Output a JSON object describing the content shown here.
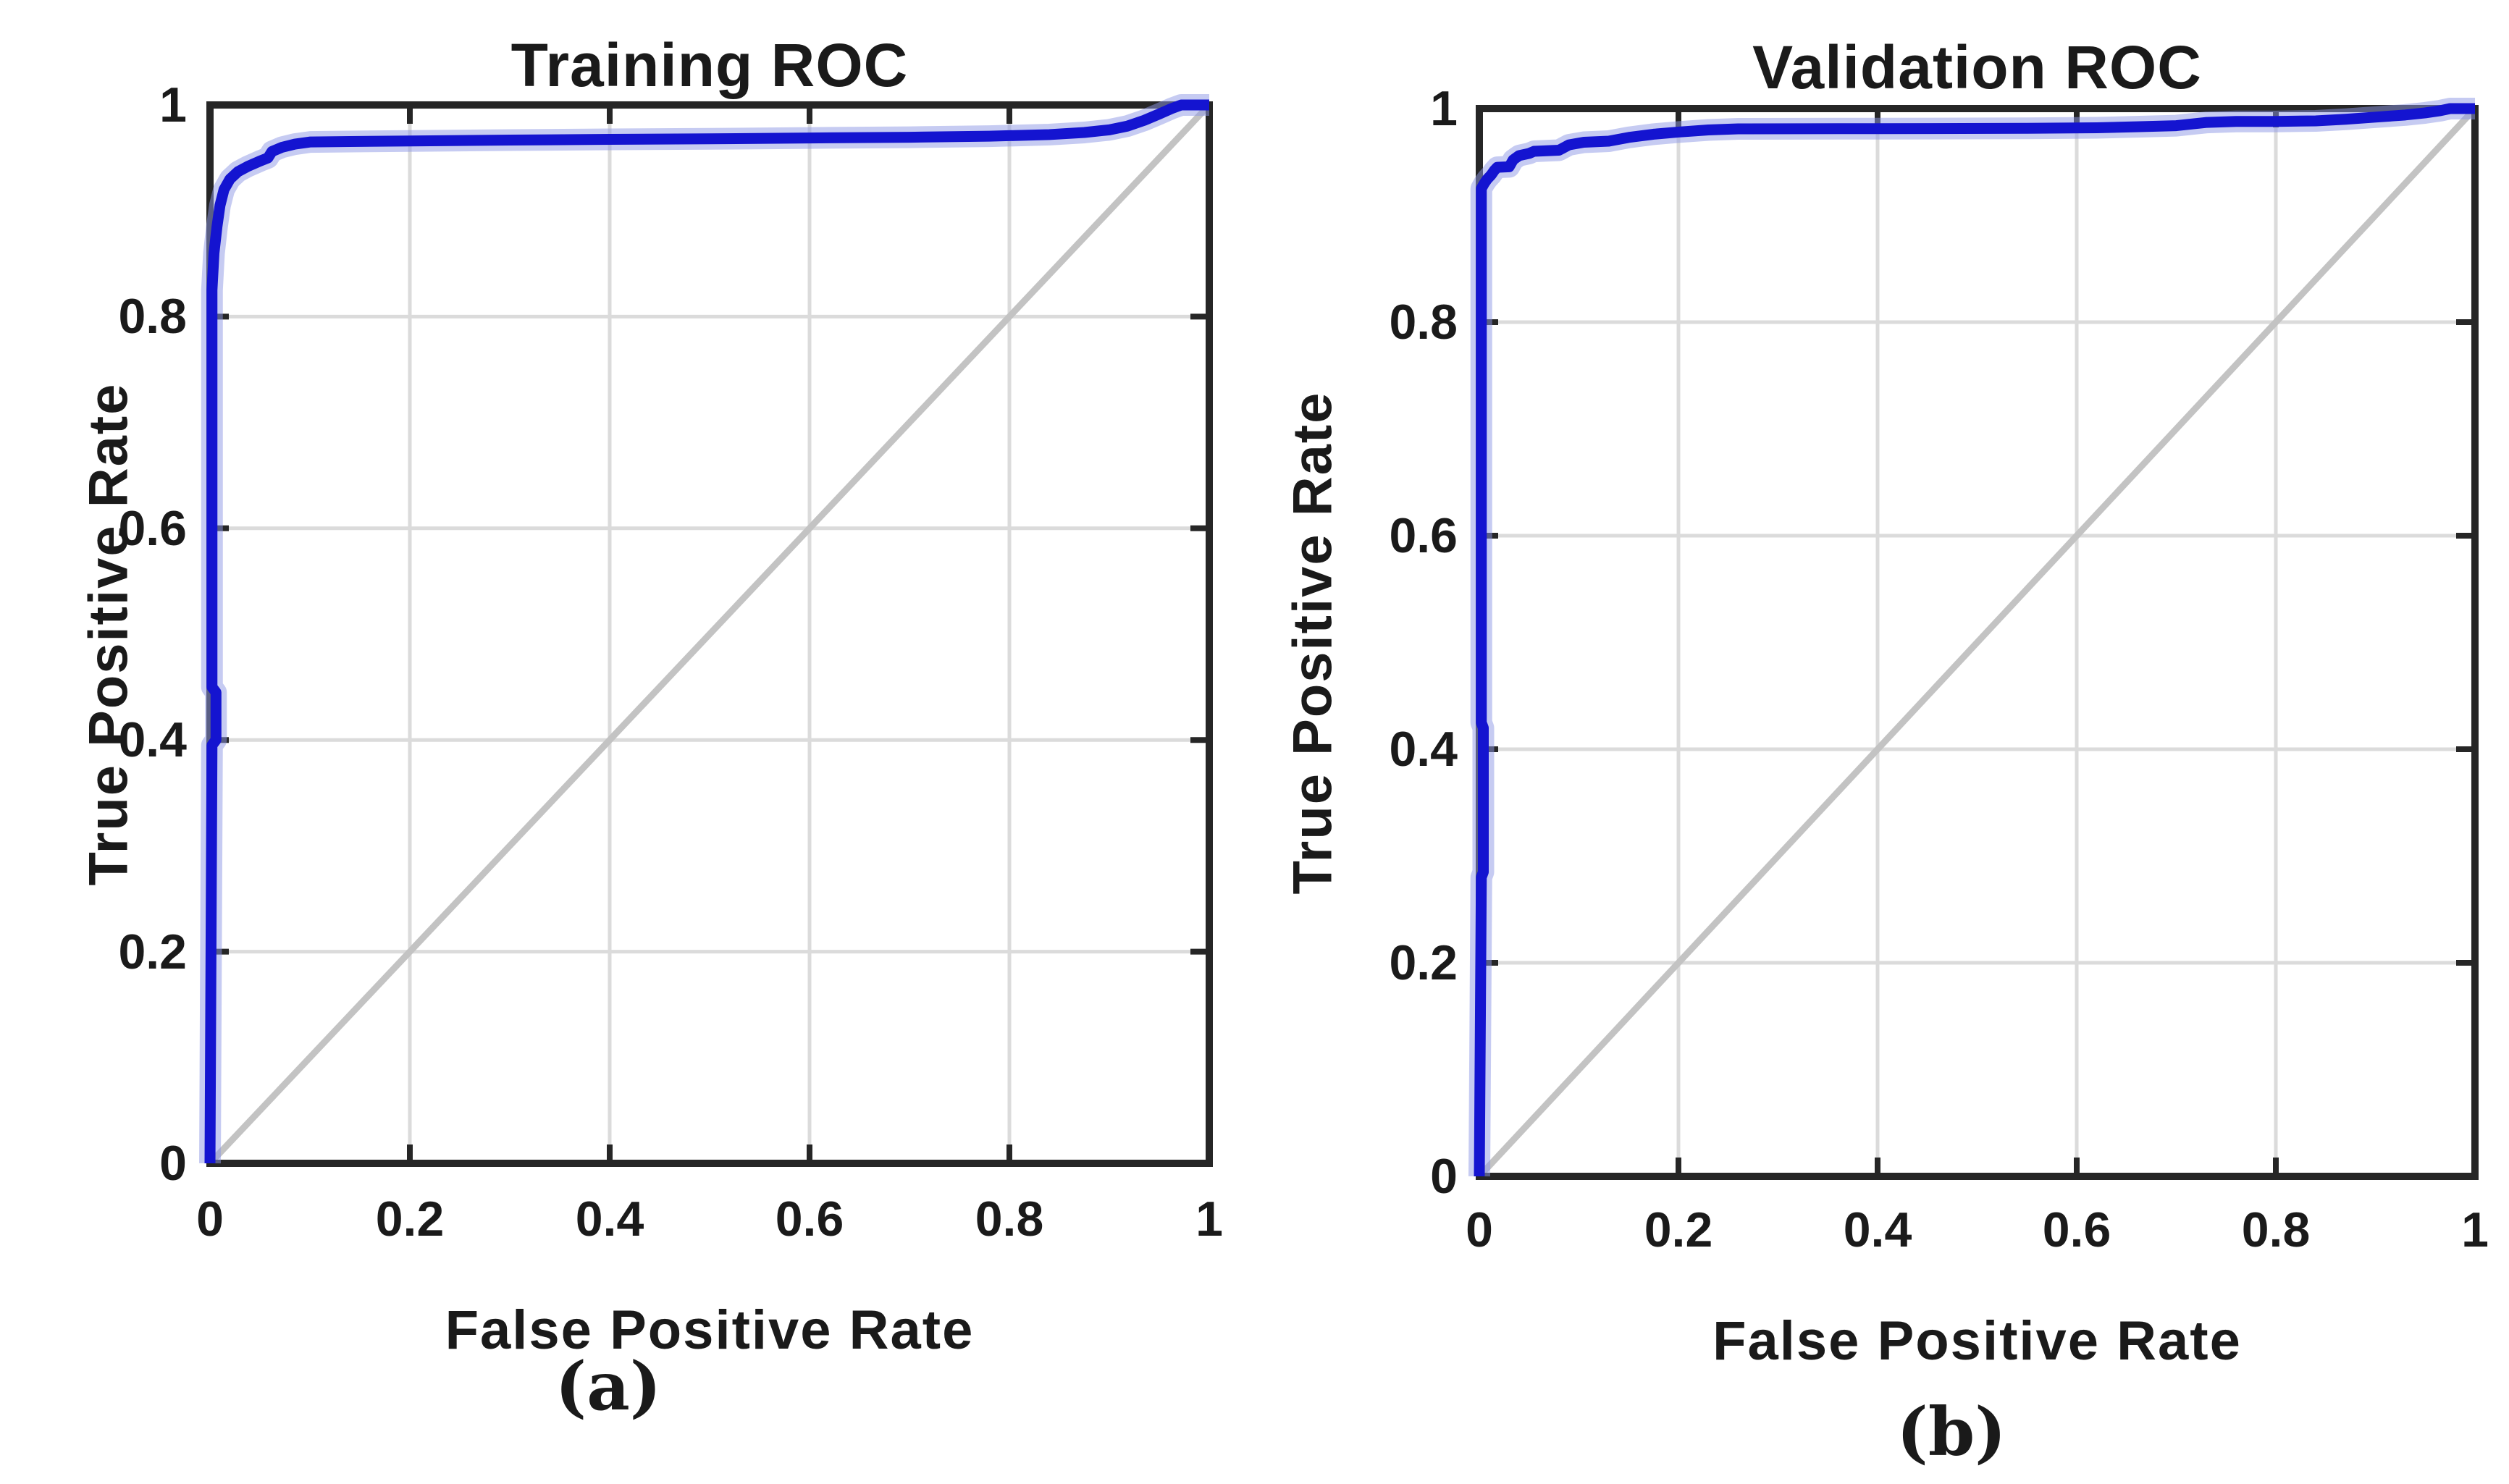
{
  "figure": {
    "background": "#ffffff"
  },
  "colors": {
    "roc": "#1414d0",
    "roc_halo": "#8d97e6",
    "reference": "#c3c3c3",
    "grid": "#dbdbdb",
    "axis": "#262626",
    "text": "#1a1a1a"
  },
  "chart_data": [
    {
      "type": "line",
      "title": "Training ROC",
      "xlabel": "False Positive Rate",
      "ylabel": "True Positive Rate",
      "caption": "(a)",
      "xlim": [
        0,
        1
      ],
      "ylim": [
        0,
        1
      ],
      "grid": true,
      "x_ticks": [
        "0",
        "0.2",
        "0.4",
        "0.6",
        "0.8",
        "1"
      ],
      "y_ticks": [
        "0",
        "0.2",
        "0.4",
        "0.6",
        "0.8",
        "1"
      ],
      "x_tick_values": [
        0,
        0.2,
        0.4,
        0.6,
        0.8,
        1
      ],
      "y_tick_values": [
        0,
        0.2,
        0.4,
        0.6,
        0.8,
        1
      ],
      "roc": {
        "name": "ROC curve",
        "color": "#1414d0",
        "width": 15,
        "halo_color": "#8d97e6",
        "halo_width": 30,
        "points": [
          [
            0.0,
            0.0
          ],
          [
            0.002,
            0.395
          ],
          [
            0.006,
            0.4
          ],
          [
            0.006,
            0.445
          ],
          [
            0.002,
            0.45
          ],
          [
            0.002,
            0.825
          ],
          [
            0.004,
            0.86
          ],
          [
            0.007,
            0.885
          ],
          [
            0.01,
            0.905
          ],
          [
            0.014,
            0.92
          ],
          [
            0.02,
            0.93
          ],
          [
            0.028,
            0.937
          ],
          [
            0.038,
            0.942
          ],
          [
            0.05,
            0.947
          ],
          [
            0.058,
            0.95
          ],
          [
            0.062,
            0.956
          ],
          [
            0.072,
            0.96
          ],
          [
            0.085,
            0.963
          ],
          [
            0.1,
            0.965
          ],
          [
            0.14,
            0.9655
          ],
          [
            0.2,
            0.966
          ],
          [
            0.3,
            0.9668
          ],
          [
            0.4,
            0.9675
          ],
          [
            0.5,
            0.968
          ],
          [
            0.6,
            0.9688
          ],
          [
            0.7,
            0.9695
          ],
          [
            0.78,
            0.9705
          ],
          [
            0.84,
            0.972
          ],
          [
            0.875,
            0.974
          ],
          [
            0.9,
            0.9765
          ],
          [
            0.918,
            0.98
          ],
          [
            0.935,
            0.9855
          ],
          [
            0.95,
            0.9915
          ],
          [
            0.962,
            0.9965
          ],
          [
            0.972,
            1.0
          ],
          [
            1.0,
            1.0
          ]
        ]
      },
      "reference": {
        "name": "chance line",
        "color": "#c3c3c3",
        "width": 9,
        "points": [
          [
            0,
            0
          ],
          [
            1,
            1
          ]
        ]
      }
    },
    {
      "type": "line",
      "title": "Validation ROC",
      "xlabel": "False Positive Rate",
      "ylabel": "True Positive Rate",
      "caption": "(b)",
      "xlim": [
        0,
        1
      ],
      "ylim": [
        0,
        1
      ],
      "grid": true,
      "x_ticks": [
        "0",
        "0.2",
        "0.4",
        "0.6",
        "0.8",
        "1"
      ],
      "y_ticks": [
        "0",
        "0.2",
        "0.4",
        "0.6",
        "0.8",
        "1"
      ],
      "x_tick_values": [
        0,
        0.2,
        0.4,
        0.6,
        0.8,
        1
      ],
      "y_tick_values": [
        0,
        0.2,
        0.4,
        0.6,
        0.8,
        1
      ],
      "roc": {
        "name": "ROC curve",
        "color": "#1414d0",
        "width": 15,
        "halo_color": "#8d97e6",
        "halo_width": 30,
        "points": [
          [
            0.0,
            0.0
          ],
          [
            0.002,
            0.28
          ],
          [
            0.004,
            0.285
          ],
          [
            0.004,
            0.42
          ],
          [
            0.002,
            0.425
          ],
          [
            0.002,
            0.925
          ],
          [
            0.005,
            0.93
          ],
          [
            0.008,
            0.934
          ],
          [
            0.012,
            0.938
          ],
          [
            0.015,
            0.942
          ],
          [
            0.018,
            0.945
          ],
          [
            0.03,
            0.9455
          ],
          [
            0.034,
            0.952
          ],
          [
            0.04,
            0.956
          ],
          [
            0.05,
            0.958
          ],
          [
            0.055,
            0.96
          ],
          [
            0.08,
            0.961
          ],
          [
            0.09,
            0.966
          ],
          [
            0.105,
            0.9685
          ],
          [
            0.13,
            0.9695
          ],
          [
            0.15,
            0.973
          ],
          [
            0.175,
            0.976
          ],
          [
            0.2,
            0.978
          ],
          [
            0.23,
            0.98
          ],
          [
            0.26,
            0.981
          ],
          [
            0.4,
            0.9812
          ],
          [
            0.55,
            0.9815
          ],
          [
            0.62,
            0.982
          ],
          [
            0.66,
            0.983
          ],
          [
            0.7,
            0.984
          ],
          [
            0.73,
            0.987
          ],
          [
            0.76,
            0.988
          ],
          [
            0.8,
            0.988
          ],
          [
            0.84,
            0.9885
          ],
          [
            0.87,
            0.99
          ],
          [
            0.9,
            0.992
          ],
          [
            0.93,
            0.994
          ],
          [
            0.95,
            0.996
          ],
          [
            0.965,
            0.998
          ],
          [
            0.975,
            1.0
          ],
          [
            1.0,
            1.0
          ]
        ]
      },
      "reference": {
        "name": "chance line",
        "color": "#c3c3c3",
        "width": 9,
        "points": [
          [
            0,
            0
          ],
          [
            1,
            1
          ]
        ]
      }
    }
  ]
}
